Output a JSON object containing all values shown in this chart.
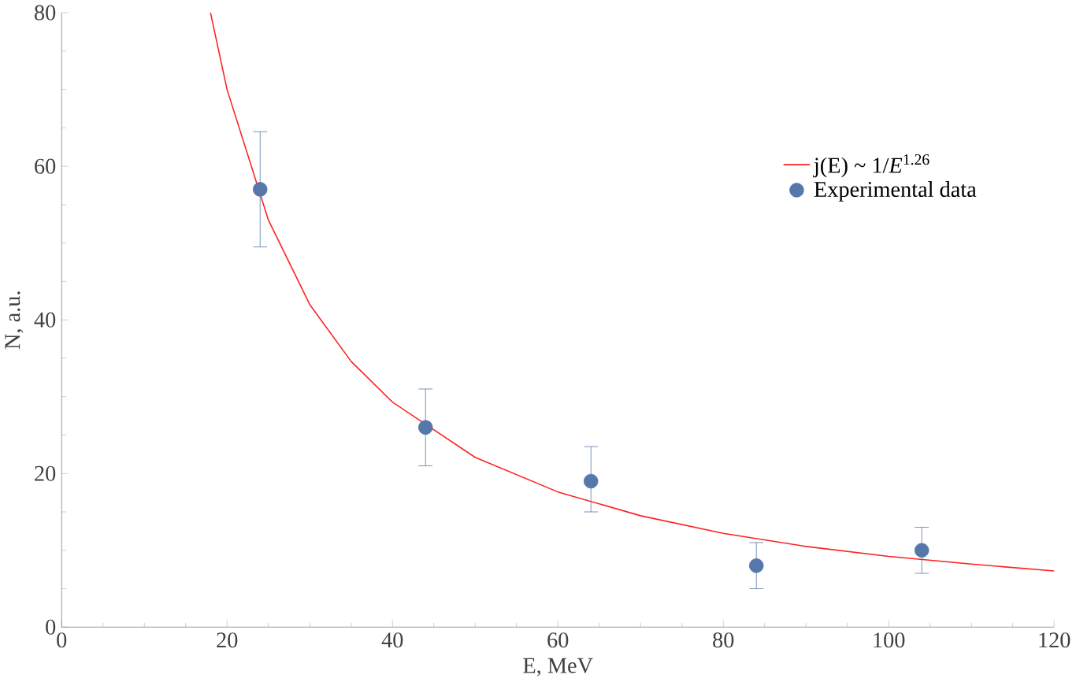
{
  "chart_data": {
    "type": "scatter",
    "xlabel": "E, MeV",
    "ylabel": "N, a.u.",
    "xlim": [
      0,
      120
    ],
    "ylim": [
      0,
      80
    ],
    "xticks": [
      0,
      20,
      40,
      60,
      80,
      100,
      120
    ],
    "yticks": [
      0,
      20,
      40,
      60,
      80
    ],
    "legend": "top right",
    "grid": false,
    "series": [
      {
        "name": "j(E) ~ 1/*E*$^{1.26}$",
        "type": "line",
        "color": "#ff2020",
        "marker": "none",
        "line_style": "solid",
        "x": [
          18,
          20,
          25,
          30,
          35,
          40,
          50,
          60,
          70,
          80,
          90,
          100,
          110,
          120
        ],
        "values": [
          80,
          70,
          53,
          42,
          34.6,
          29.3,
          22.1,
          17.6,
          14.5,
          12.2,
          10.5,
          9.2,
          8.2,
          7.3
        ]
      },
      {
        "name": "Experimental  data",
        "color": "#5577aa",
        "marker": "circle",
        "x": [
          24,
          44,
          64,
          84,
          104
        ],
        "values": [
          57,
          26,
          19,
          8,
          10
        ],
        "errors": [
          [
            49.5,
            64.5
          ],
          [
            21,
            31
          ],
          [
            15,
            23.5
          ],
          [
            5,
            11
          ],
          [
            7,
            13
          ]
        ]
      }
    ]
  }
}
